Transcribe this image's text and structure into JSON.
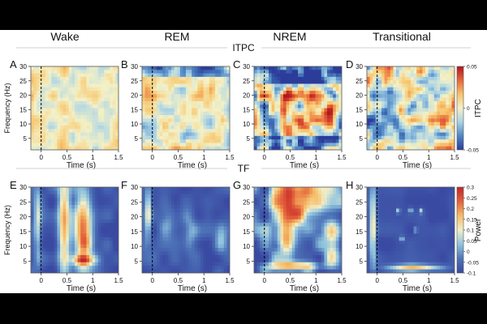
{
  "chart_data": {
    "type": "heatmap",
    "columns": [
      "Wake",
      "REM",
      "NREM",
      "Transitional"
    ],
    "rows": [
      {
        "title": "ITPC",
        "panel_letters": [
          "A",
          "B",
          "C",
          "D"
        ],
        "colorbar": {
          "label": "ITPC",
          "ticks": [
            "0.05",
            "0",
            "-0.05"
          ],
          "range": [
            -0.05,
            0.05
          ],
          "colors": [
            "#2c3c9a",
            "#4d86c4",
            "#a9d3e6",
            "#f4f1c6",
            "#f7c46a",
            "#e8663a",
            "#b0161b"
          ]
        },
        "scales": [
          0.35,
          0.5,
          1.0,
          0.8
        ]
      },
      {
        "title": "TF",
        "panel_letters": [
          "E",
          "F",
          "G",
          "H"
        ],
        "colorbar": {
          "label": "Power",
          "ticks": [
            "0.3",
            "0.25",
            "0.2",
            "0.15",
            "0.1",
            "0.05",
            "0",
            "-0.05",
            "-0.1"
          ],
          "range": [
            -0.1,
            0.3
          ],
          "colors": [
            "#3a4aa2",
            "#4e74b8",
            "#8fc3de",
            "#f1eec8",
            "#f5bd67",
            "#e4613a",
            "#c2262a"
          ]
        }
      }
    ],
    "xlabel": "Time (s)",
    "ylabel": "Frequency (Hz)",
    "xticks": [
      "0",
      "0.5",
      "1",
      "1.5"
    ],
    "xlim": [
      -0.2,
      1.5
    ],
    "yticks": [
      "5",
      "10",
      "15",
      "20",
      "25",
      "30"
    ],
    "ylim": [
      1,
      30
    ],
    "event_marker_time": 0
  }
}
